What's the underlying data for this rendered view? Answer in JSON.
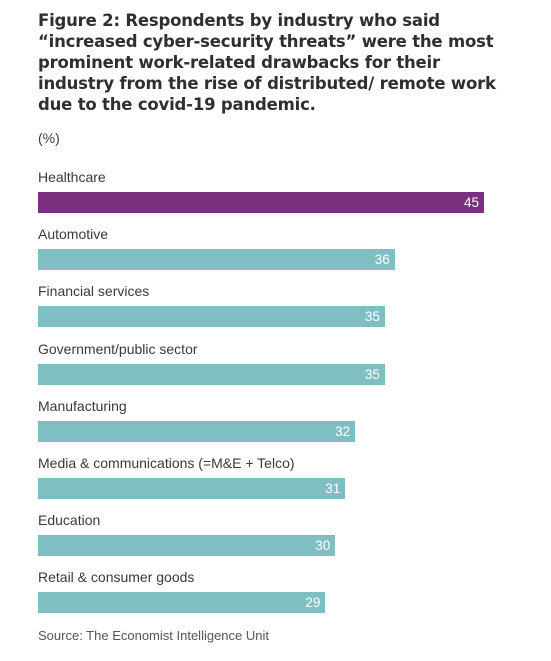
{
  "figure": {
    "title": "Figure 2: Respondents by industry who said “increased cyber-security threats” were the most prominent work-related drawbacks for their industry from the rise of distributed/ remote work due to the covid-19 pandemic.",
    "unit": "(%)",
    "source": "Source: The Economist Intelligence Unit"
  },
  "colors": {
    "highlight": "#7a2f7e",
    "bar": "#7fbfc4"
  },
  "chart_data": {
    "type": "bar",
    "orientation": "horizontal",
    "title": "Figure 2: Respondents by industry who said “increased cyber-security threats” were the most prominent work-related drawbacks for their industry from the rise of distributed/ remote work due to the covid-19 pandemic.",
    "ylabel": "(%)",
    "categories": [
      "Healthcare",
      "Automotive",
      "Financial services",
      "Government/public sector",
      "Manufacturing",
      "Media & communications (=M&E + Telco)",
      "Education",
      "Retail & consumer goods"
    ],
    "values": [
      45,
      36,
      35,
      35,
      32,
      31,
      30,
      29
    ],
    "highlighted_category": "Healthcare",
    "xlim": [
      0,
      45
    ],
    "grid": false,
    "data_labels": true
  }
}
